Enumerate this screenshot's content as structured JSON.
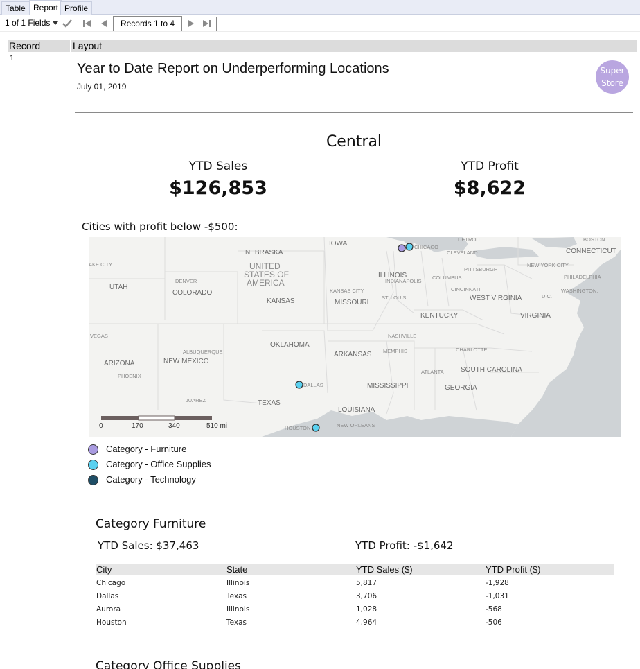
{
  "tabs": [
    {
      "label": "Table"
    },
    {
      "label": "Report"
    },
    {
      "label": "Profile"
    }
  ],
  "toolbar": {
    "fields": "1 of 1 Fields",
    "records": "Records 1 to 4"
  },
  "grid": {
    "record_header": "Record",
    "layout_header": "Layout",
    "record_number": "1"
  },
  "report": {
    "title": "Year to Date Report on Underperforming Locations",
    "date": "July 01, 2019",
    "logo_line1": "Super",
    "logo_line2": "Store",
    "region": "Central",
    "sales_label": "YTD Sales",
    "sales_value": "$126,853",
    "profit_label": "YTD Profit",
    "profit_value": "$8,622",
    "map_label": "Cities with profit below -$500:"
  },
  "map": {
    "scale_labels": [
      "0",
      "170",
      "340",
      "510 mi"
    ],
    "labels": {
      "nebraska": "NEBRASKA",
      "iowa": "IOWA",
      "detroit": "DETROIT",
      "boston": "BOSTON",
      "united_states": "UNITED",
      "us2": "STATES OF",
      "us3": "AMERICA",
      "chicago": "CHICAGO",
      "cleveland": "CLEVELAND",
      "connecticut": "CONNECTICUT",
      "ake_city": "AKE CITY",
      "utah": "UTAH",
      "denver": "DENVER",
      "colorado": "COLORADO",
      "kansas": "KANSAS",
      "kansas_city": "KANSAS CITY",
      "missouri": "MISSOURI",
      "illinois": "ILLINOIS",
      "indianapolis": "INDIANAPOLIS",
      "columbus": "COLUMBUS",
      "pittsburgh": "PITTSBURGH",
      "new_york_city": "NEW YORK CITY",
      "philadelphia": "PHILADELPHIA",
      "st_louis": "ST. LOUIS",
      "cincinnati": "CINCINNATI",
      "west_virginia": "WEST VIRGINIA",
      "washington": "WASHINGTON,",
      "dc": "D.C.",
      "kentucky": "KENTUCKY",
      "virginia": "VIRGINIA",
      "vegas": "VEGAS",
      "nashville": "NASHVILLE",
      "oklahoma": "OKLAHOMA",
      "albuquerque": "ALBUQUERQUE",
      "arizona": "ARIZONA",
      "new_mexico": "NEW MEXICO",
      "phoenix": "PHOENIX",
      "arkansas": "ARKANSAS",
      "memphis": "MEMPHIS",
      "charlotte": "CHARLOTTE",
      "atlanta": "ATLANTA",
      "south_carolina": "SOUTH CAROLINA",
      "dallas": "DALLAS",
      "mississippi": "MISSISSIPPI",
      "georgia": "GEORGIA",
      "juarez": "JUAREZ",
      "texas": "TEXAS",
      "louisiana": "LOUISIANA",
      "houston": "HOUSTON",
      "new_orleans": "NEW ORLEANS"
    }
  },
  "legend": [
    {
      "label": "Category - Furniture",
      "color": "#a99be0"
    },
    {
      "label": "Category - Office Supplies",
      "color": "#5ad1f0"
    },
    {
      "label": "Category - Technology",
      "color": "#1f4e66"
    }
  ],
  "category": {
    "title": "Category Furniture",
    "sales": "YTD Sales: $37,463",
    "profit": "YTD Profit: -$1,642",
    "columns": [
      "City",
      "State",
      "YTD Sales ($)",
      "YTD Profit ($)"
    ],
    "rows": [
      [
        "Chicago",
        "Illinois",
        "5,817",
        "-1,928"
      ],
      [
        "Dallas",
        "Texas",
        "3,706",
        "-1,031"
      ],
      [
        "Aurora",
        "Illinois",
        "1,028",
        "-568"
      ],
      [
        "Houston",
        "Texas",
        "4,964",
        "-506"
      ]
    ]
  },
  "next_category": "Category Office Supplies",
  "colors": {
    "furniture": "#a99be0",
    "office_supplies": "#5ad1f0",
    "technology": "#1f4e66",
    "logo": "#b9a6e0"
  }
}
